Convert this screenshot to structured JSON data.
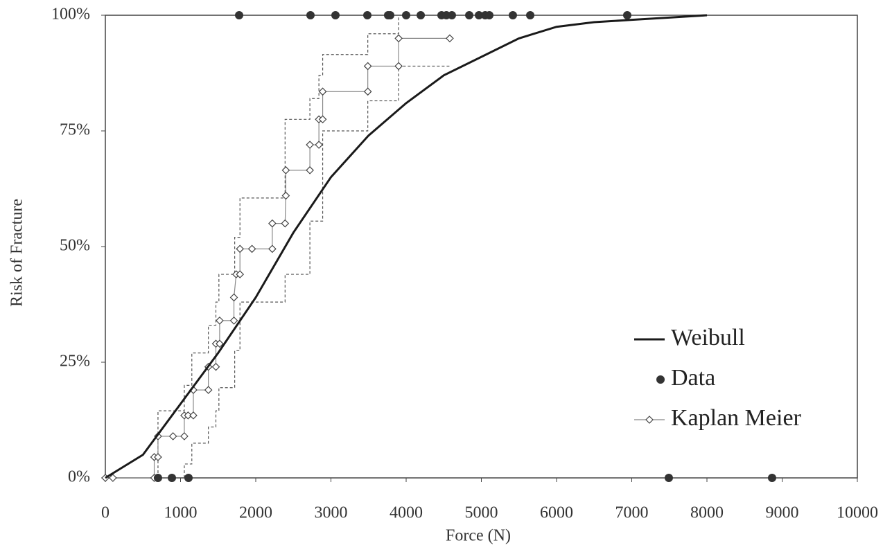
{
  "chart_data": {
    "type": "line",
    "x_label": "Force (N)",
    "y_label": "Risk of Fracture",
    "xlim": [
      0,
      10000
    ],
    "ylim": [
      0,
      100
    ],
    "xticks": [
      0,
      1000,
      2000,
      3000,
      4000,
      5000,
      6000,
      7000,
      8000,
      9000,
      10000
    ],
    "yticks": [
      {
        "value": 0,
        "label": "0%"
      },
      {
        "value": 25,
        "label": "25%"
      },
      {
        "value": 50,
        "label": "50%"
      },
      {
        "value": 75,
        "label": "75%"
      },
      {
        "value": 100,
        "label": "100%"
      }
    ],
    "legend": "lower right",
    "series": [
      {
        "name": "Weibull",
        "color": "#1a1a1a",
        "style": "line",
        "x": [
          0,
          500,
          1000,
          1500,
          2000,
          2500,
          3000,
          3500,
          4000,
          4500,
          5000,
          5500,
          6000,
          6500,
          7000,
          7500,
          8000
        ],
        "values": [
          0,
          5,
          16,
          27,
          39,
          53,
          65,
          74,
          81,
          87,
          91,
          95,
          97.5,
          98.5,
          99,
          99.5,
          100
        ]
      },
      {
        "name": "Data",
        "color": "#333333",
        "style": "points",
        "x": [
          1779,
          2728,
          3060,
          3484,
          3760,
          3788,
          4000,
          4194,
          4470,
          4535,
          4608,
          4839,
          4968,
          5051,
          5106,
          5419,
          5650,
          6940,
          700,
          885,
          1106,
          7493,
          8866
        ],
        "values": [
          100,
          100,
          100,
          100,
          100,
          100,
          100,
          100,
          100,
          100,
          100,
          100,
          100,
          100,
          100,
          100,
          100,
          100,
          0,
          0,
          0,
          0,
          0
        ]
      },
      {
        "name": "Kaplan Meier",
        "color": "#888888",
        "style": "step-markers",
        "x": [
          0,
          100,
          650,
          650,
          700,
          700,
          900,
          1050,
          1050,
          1100,
          1170,
          1170,
          1370,
          1370,
          1470,
          1470,
          1520,
          1520,
          1710,
          1710,
          1740,
          1790,
          1790,
          1950,
          2220,
          2220,
          2390,
          2400,
          2400,
          2720,
          2720,
          2840,
          2840,
          2890,
          2890,
          3490,
          3490,
          3900,
          3900,
          4580
        ],
        "values": [
          0,
          0,
          0,
          4.5,
          4.5,
          9,
          9,
          9,
          13.5,
          13.5,
          13.5,
          19,
          19,
          24,
          24,
          29,
          29,
          34,
          34,
          39,
          44,
          44,
          49.5,
          49.5,
          49.5,
          55,
          55,
          61,
          66.5,
          66.5,
          72,
          72,
          77.5,
          77.5,
          83.5,
          83.5,
          89,
          89,
          95,
          95
        ]
      },
      {
        "color": "#555555",
        "style": "dashed",
        "x": [
          700,
          700,
          1050,
          1050,
          1150,
          1150,
          1370,
          1370,
          1470,
          1470,
          1510,
          1510,
          1720,
          1720,
          1790,
          1790,
          2390,
          2390,
          2720,
          2720,
          2840,
          2840,
          2890,
          2890,
          3490,
          3490,
          3900,
          3900
        ],
        "values": [
          0,
          14.5,
          14.5,
          20,
          20,
          27,
          27,
          33,
          33,
          38,
          38,
          44,
          44,
          52,
          52,
          60.5,
          60.5,
          77.5,
          77.5,
          82,
          82,
          87,
          87,
          91.5,
          91.5,
          96,
          96,
          100
        ]
      },
      {
        "color": "#555555",
        "style": "dashed",
        "x": [
          1050,
          1050,
          1150,
          1150,
          1370,
          1370,
          1470,
          1470,
          1510,
          1510,
          1720,
          1720,
          1790,
          1790,
          2390,
          2390,
          2720,
          2720,
          2890,
          2890,
          3490,
          3490,
          3900,
          3900,
          4580
        ],
        "values": [
          0,
          3,
          3,
          7.5,
          7.5,
          11,
          11,
          14.5,
          14.5,
          19.5,
          19.5,
          27.5,
          27.5,
          38,
          38,
          44,
          44,
          55.5,
          55.5,
          75,
          75,
          81.5,
          81.5,
          89,
          89
        ]
      }
    ]
  }
}
